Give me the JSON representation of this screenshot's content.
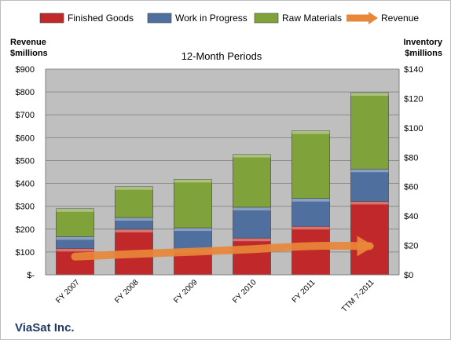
{
  "chart_data": {
    "type": "bar",
    "subtype": "stacked-bar-with-line",
    "title": "12-Month Periods",
    "company": "ViaSat Inc.",
    "categories": [
      "FY 2007",
      "FY 2008",
      "FY 2009",
      "FY 2010",
      "FY 2011",
      "TTM 7-2011"
    ],
    "series": [
      {
        "name": "Finished Goods",
        "axis": "right",
        "color": "#c0282a",
        "values": [
          18,
          31,
          17,
          25,
          33,
          50
        ]
      },
      {
        "name": "Work in Progress",
        "axis": "right",
        "color": "#4f6f9f",
        "values": [
          8,
          8,
          15,
          21,
          19,
          22
        ]
      },
      {
        "name": "Raw Materials",
        "axis": "right",
        "color": "#7fa23a",
        "values": [
          19,
          21,
          33,
          36,
          46,
          52
        ]
      },
      {
        "name": "Revenue",
        "axis": "left",
        "type": "line",
        "color": "#e8873a",
        "values": [
          80,
          91,
          101,
          112,
          126,
          126
        ]
      }
    ],
    "left_axis": {
      "label_line1": "Revenue",
      "label_line2": "$millions",
      "range": [
        0,
        900
      ],
      "ticks": [
        0,
        100,
        200,
        300,
        400,
        500,
        600,
        700,
        800,
        900
      ],
      "tick_labels": [
        "$-",
        "$100",
        "$200",
        "$300",
        "$400",
        "$500",
        "$600",
        "$700",
        "$800",
        "$900"
      ]
    },
    "right_axis": {
      "label_line1": "Inventory",
      "label_line2": "$millions",
      "range": [
        0,
        140
      ],
      "ticks": [
        0,
        20,
        40,
        60,
        80,
        100,
        120,
        140
      ],
      "tick_labels": [
        "$0",
        "$20",
        "$40",
        "$60",
        "$80",
        "$100",
        "$120",
        "$140"
      ]
    },
    "grid": true,
    "legend_position": "top"
  },
  "colors": {
    "plot_bg": "#bfbfbf",
    "grid": "#8c8c8c"
  }
}
